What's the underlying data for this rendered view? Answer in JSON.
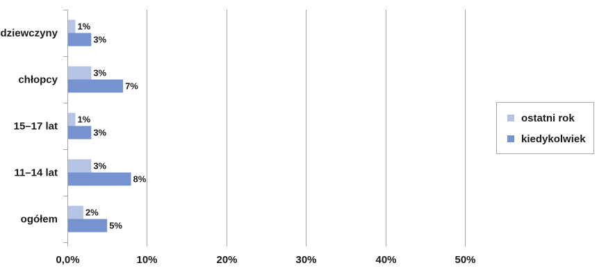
{
  "chart_data": {
    "type": "bar",
    "orientation": "horizontal",
    "categories": [
      "dziewczyny",
      "chłopcy",
      "15–17 lat",
      "11–14 lat",
      "ogółem"
    ],
    "series": [
      {
        "name": "ostatni rok",
        "values": [
          1,
          3,
          1,
          3,
          2
        ],
        "labels": [
          "1%",
          "3%",
          "1%",
          "3%",
          "2%"
        ]
      },
      {
        "name": "kiedykolwiek",
        "values": [
          3,
          7,
          3,
          8,
          5
        ],
        "labels": [
          "3%",
          "7%",
          "3%",
          "8%",
          "5%"
        ]
      }
    ],
    "xlim": [
      0,
      50
    ],
    "xticks": [
      {
        "value": 0,
        "label": "0,0%"
      },
      {
        "value": 10,
        "label": "10%"
      },
      {
        "value": 20,
        "label": "20%"
      },
      {
        "value": 30,
        "label": "30%"
      },
      {
        "value": 40,
        "label": "40%"
      },
      {
        "value": 50,
        "label": "50%"
      }
    ],
    "grid": true,
    "legend": "right",
    "colors": {
      "ostatni rok": "#b5c3e4",
      "kiedykolwiek": "#7593cf"
    }
  }
}
